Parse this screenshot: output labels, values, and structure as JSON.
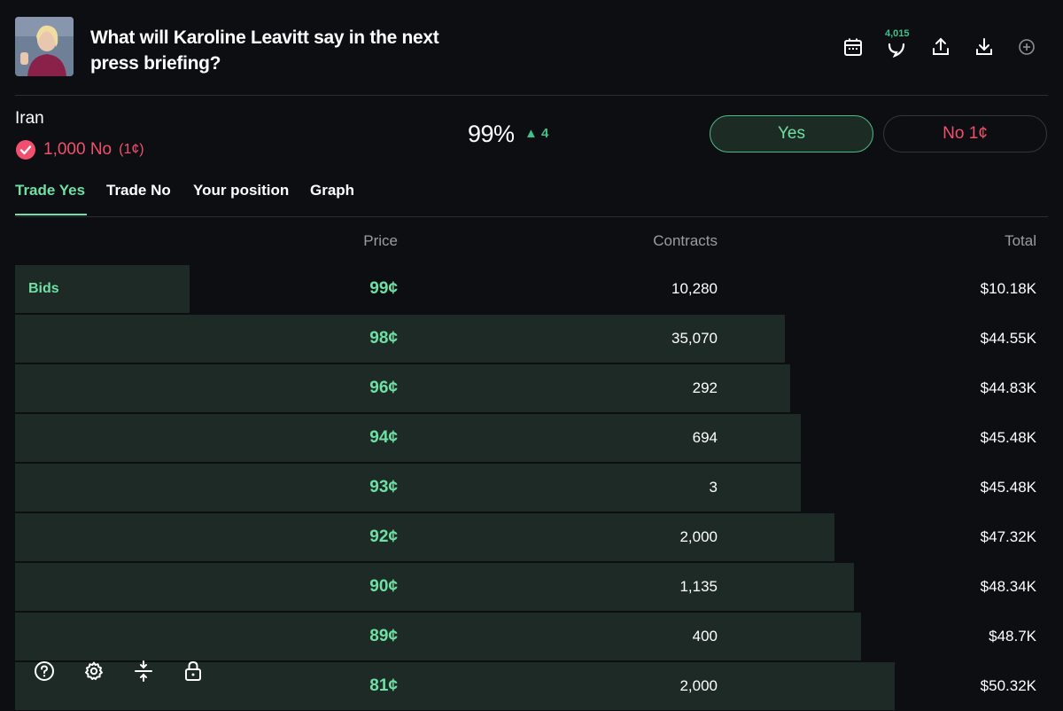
{
  "header": {
    "title": "What will Karoline Leavitt say in the next press briefing?",
    "comment_count": "4,015",
    "icons": [
      "calendar-icon",
      "comment-icon",
      "share-icon",
      "download-icon",
      "add-icon"
    ]
  },
  "market": {
    "label": "Iran",
    "position_amount": "1,000 No",
    "position_price": "(1¢)",
    "probability": "99%",
    "change": "▲ 4",
    "yes_label": "Yes",
    "no_label": "No 1¢"
  },
  "tabs": [
    {
      "label": "Trade Yes",
      "active": true
    },
    {
      "label": "Trade No",
      "active": false
    },
    {
      "label": "Your position",
      "active": false
    },
    {
      "label": "Graph",
      "active": false
    }
  ],
  "orderbook": {
    "columns": {
      "price": "Price",
      "contracts": "Contracts",
      "total": "Total"
    },
    "side_label": "Bids",
    "rows": [
      {
        "price": "99¢",
        "contracts": "10,280",
        "total": "$10.18K",
        "depth": 0.169
      },
      {
        "price": "98¢",
        "contracts": "35,070",
        "total": "$44.55K",
        "depth": 0.745
      },
      {
        "price": "96¢",
        "contracts": "292",
        "total": "$44.83K",
        "depth": 0.75
      },
      {
        "price": "94¢",
        "contracts": "694",
        "total": "$45.48K",
        "depth": 0.761
      },
      {
        "price": "93¢",
        "contracts": "3",
        "total": "$45.48K",
        "depth": 0.761
      },
      {
        "price": "92¢",
        "contracts": "2,000",
        "total": "$47.32K",
        "depth": 0.793
      },
      {
        "price": "90¢",
        "contracts": "1,135",
        "total": "$48.34K",
        "depth": 0.812
      },
      {
        "price": "89¢",
        "contracts": "400",
        "total": "$48.7K",
        "depth": 0.819
      },
      {
        "price": "81¢",
        "contracts": "2,000",
        "total": "$50.32K",
        "depth": 0.852
      }
    ]
  },
  "colors": {
    "accent_green": "#6ee0a4",
    "accent_red": "#f0506e",
    "bar": "#1d2a25",
    "background": "#0d0e12"
  },
  "toolbar_icons": [
    "help-icon",
    "settings-icon",
    "collapse-icon",
    "lock-icon"
  ]
}
